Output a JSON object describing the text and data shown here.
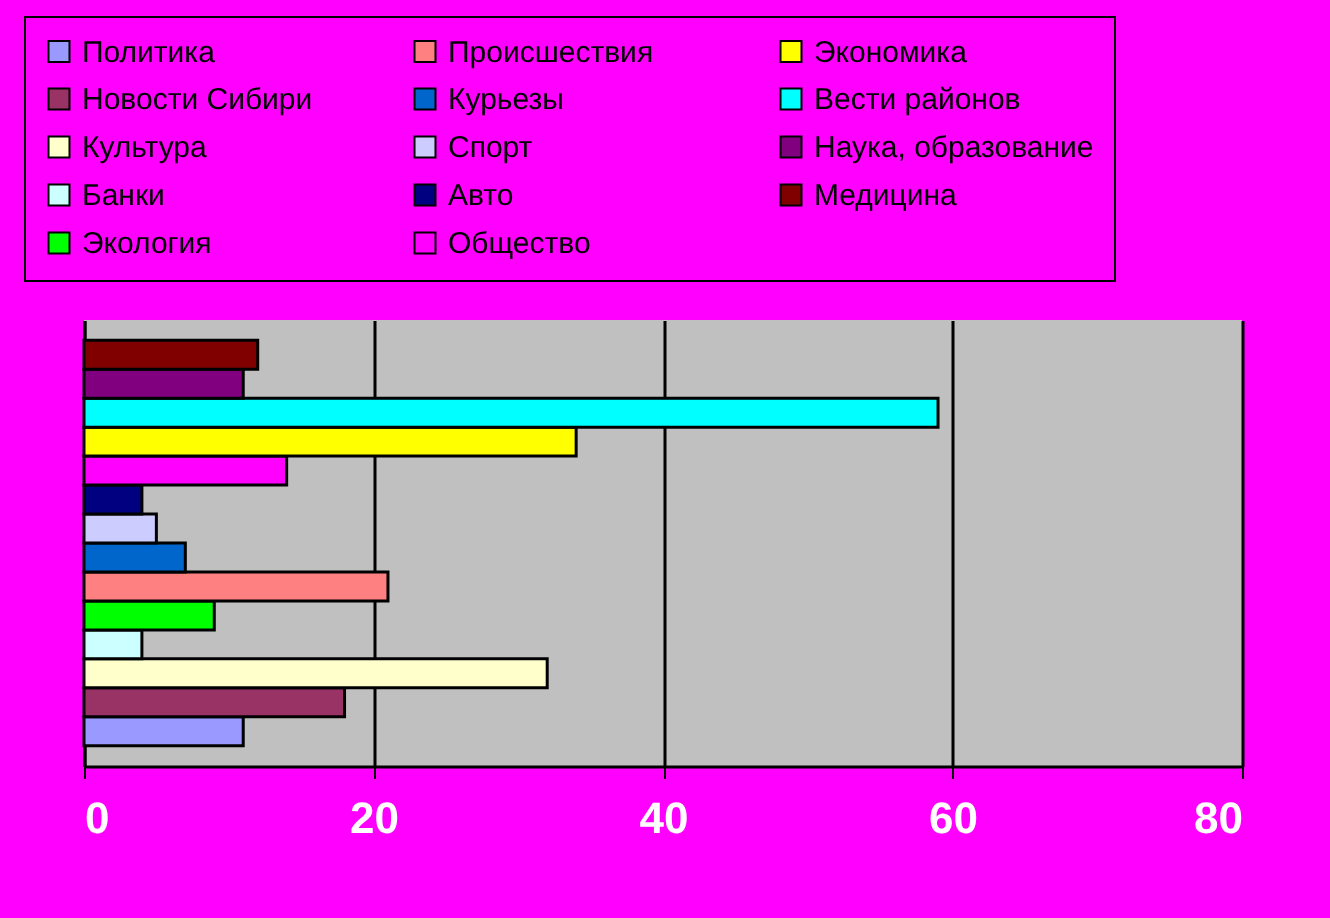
{
  "chart_data": {
    "type": "bar",
    "orientation": "horizontal",
    "categories": [
      null
    ],
    "tick_labels": "x",
    "series": [
      {
        "name": "Политика",
        "color": "#9999ff",
        "values": [
          11
        ]
      },
      {
        "name": "Новости Сибири",
        "color": "#993366",
        "values": [
          18
        ]
      },
      {
        "name": "Культура",
        "color": "#ffffcc",
        "values": [
          32
        ]
      },
      {
        "name": "Банки",
        "color": "#ccffff",
        "values": [
          4
        ]
      },
      {
        "name": "Экология",
        "color": "#00ff00",
        "values": [
          9
        ]
      },
      {
        "name": "Происшествия",
        "color": "#ff8080",
        "values": [
          21
        ]
      },
      {
        "name": "Курьезы",
        "color": "#0066cc",
        "values": [
          7
        ]
      },
      {
        "name": "Спорт",
        "color": "#ccccff",
        "values": [
          5
        ]
      },
      {
        "name": "Авто",
        "color": "#000080",
        "values": [
          4
        ]
      },
      {
        "name": "Общество",
        "color": "#ff00ff",
        "values": [
          14
        ]
      },
      {
        "name": "Экономика",
        "color": "#ffff00",
        "values": [
          34
        ]
      },
      {
        "name": "Вести районов",
        "color": "#00ffff",
        "values": [
          59
        ]
      },
      {
        "name": "Наука, образование",
        "color": "#800080",
        "values": [
          11
        ]
      },
      {
        "name": "Медицина",
        "color": "#800000",
        "values": [
          12
        ]
      }
    ],
    "xlim": [
      0,
      80
    ],
    "xticks": [
      0,
      20,
      40,
      60,
      80
    ],
    "grid": "x",
    "legend": "top"
  }
}
